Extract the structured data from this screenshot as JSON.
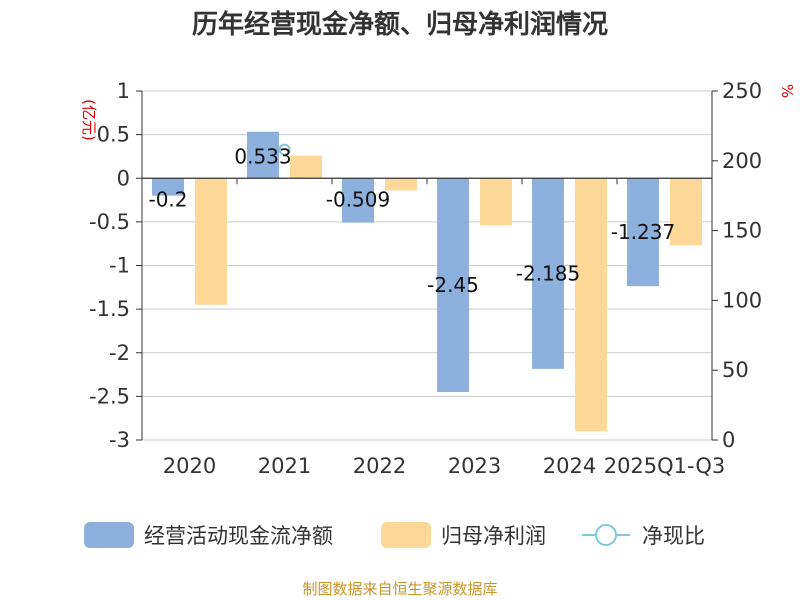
{
  "chart_data": {
    "type": "bar",
    "title": "历年经营现金净额、归母净利润情况",
    "categories": [
      "2020",
      "2021",
      "2022",
      "2023",
      "2024",
      "2025Q1-Q3"
    ],
    "left_axis": {
      "unit": "(亿元)",
      "ylim": [
        -3,
        1
      ],
      "ticks": [
        "1",
        "0.5",
        "0",
        "-0.5",
        "-1",
        "-1.5",
        "-2",
        "-2.5",
        "-3"
      ]
    },
    "right_axis": {
      "unit": "%",
      "ylim": [
        0,
        250
      ],
      "ticks": [
        "250",
        "200",
        "150",
        "100",
        "50",
        "0"
      ]
    },
    "series": [
      {
        "name": "经营活动现金流净额",
        "color": "#8eb0dc",
        "values": [
          -0.2,
          0.533,
          -0.509,
          -2.45,
          -2.185,
          -1.237
        ],
        "labels": [
          "-0.2",
          "0.533",
          "-0.509",
          "-2.45",
          "-2.185",
          "-1.237"
        ]
      },
      {
        "name": "归母净利润",
        "color": "#fdd898",
        "values": [
          -1.45,
          0.26,
          -0.14,
          -0.54,
          -2.9,
          -0.77
        ]
      },
      {
        "name": "净现比",
        "color": "#7ecad8",
        "type": "line",
        "values": [
          null,
          208,
          null,
          null,
          null,
          null
        ]
      }
    ],
    "grid": true,
    "legend_position": "bottom"
  },
  "source_note": "制图数据来自恒生聚源数据库"
}
